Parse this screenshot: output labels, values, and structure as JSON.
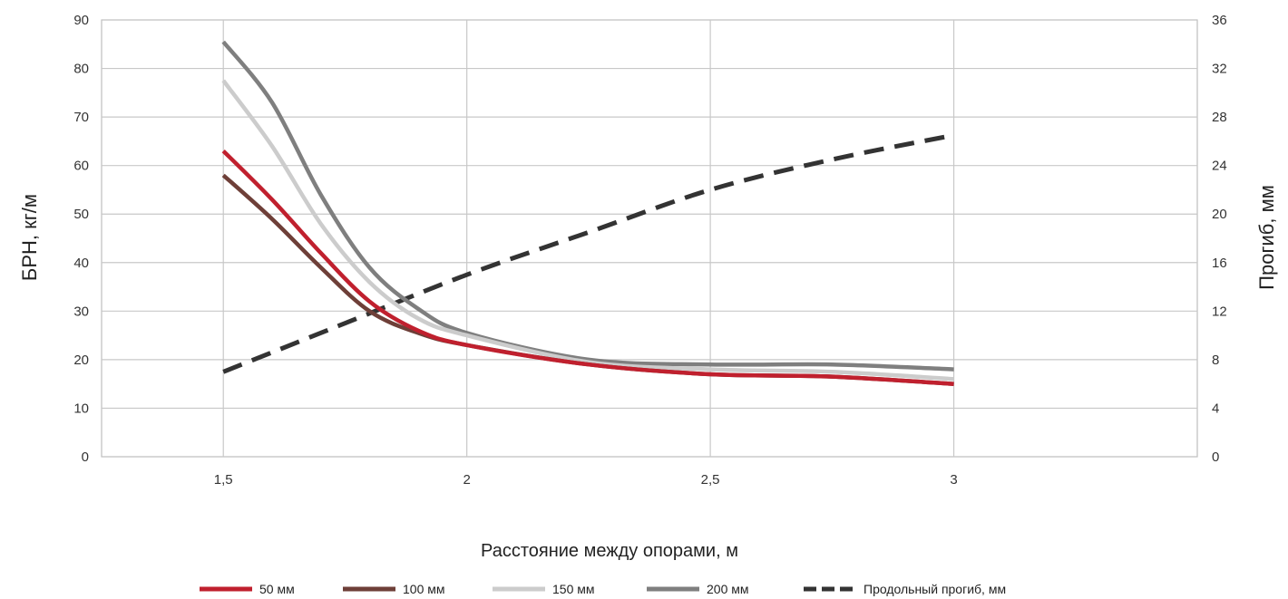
{
  "chart_data": {
    "type": "line",
    "xlabel": "Расстояние между опорами, м",
    "ylabel_left": "БРН, кг/м",
    "ylabel_right": "Прогиб, мм",
    "xlim": [
      1.25,
      3.5
    ],
    "ylim_left": [
      0,
      90
    ],
    "ylim_right": [
      0,
      36
    ],
    "x_ticks": [
      {
        "value": 1.5,
        "label": "1,5"
      },
      {
        "value": 2,
        "label": "2"
      },
      {
        "value": 2.5,
        "label": "2,5"
      },
      {
        "value": 3,
        "label": "3"
      }
    ],
    "y_left_ticks": [
      {
        "value": 0,
        "label": "0"
      },
      {
        "value": 10,
        "label": "10"
      },
      {
        "value": 20,
        "label": "20"
      },
      {
        "value": 30,
        "label": "30"
      },
      {
        "value": 40,
        "label": "40"
      },
      {
        "value": 50,
        "label": "50"
      },
      {
        "value": 60,
        "label": "60"
      },
      {
        "value": 70,
        "label": "70"
      },
      {
        "value": 80,
        "label": "80"
      },
      {
        "value": 90,
        "label": "90"
      }
    ],
    "y_right_ticks": [
      {
        "value": 0,
        "label": "0"
      },
      {
        "value": 4,
        "label": "4"
      },
      {
        "value": 8,
        "label": "8"
      },
      {
        "value": 12,
        "label": "12"
      },
      {
        "value": 16,
        "label": "16"
      },
      {
        "value": 20,
        "label": "20"
      },
      {
        "value": 24,
        "label": "24"
      },
      {
        "value": 28,
        "label": "28"
      },
      {
        "value": 32,
        "label": "32"
      },
      {
        "value": 36,
        "label": "36"
      }
    ],
    "grid": true,
    "legend_position": "bottom",
    "series": [
      {
        "name": "50 мм",
        "axis": "left",
        "color": "#c0202e",
        "dashed": false,
        "x": [
          1.5,
          1.6,
          1.7,
          1.8,
          1.9,
          2.0,
          2.25,
          2.5,
          2.75,
          3.0
        ],
        "y": [
          63,
          53,
          42,
          32,
          26,
          23,
          19,
          17,
          16.5,
          15
        ]
      },
      {
        "name": "100 мм",
        "axis": "left",
        "color": "#6e3f38",
        "dashed": false,
        "x": [
          1.5,
          1.6,
          1.7,
          1.8,
          1.9,
          2.0,
          2.25,
          2.5,
          2.75,
          3.0
        ],
        "y": [
          58,
          49,
          39,
          30,
          25.5,
          23,
          19,
          17,
          16.5,
          15
        ]
      },
      {
        "name": "150 мм",
        "axis": "left",
        "color": "#cccccc",
        "dashed": false,
        "x": [
          1.5,
          1.6,
          1.7,
          1.8,
          1.9,
          2.0,
          2.25,
          2.5,
          2.75,
          3.0
        ],
        "y": [
          77.5,
          64,
          48,
          36,
          28.5,
          25,
          19.5,
          18,
          17.5,
          16
        ]
      },
      {
        "name": "200 мм",
        "axis": "left",
        "color": "#7f7f7f",
        "dashed": false,
        "x": [
          1.5,
          1.6,
          1.7,
          1.8,
          1.9,
          2.0,
          2.25,
          2.5,
          2.75,
          3.0
        ],
        "y": [
          85.5,
          73,
          54,
          39,
          30.5,
          25.5,
          20,
          19,
          19,
          18
        ]
      },
      {
        "name": "Продольный прогиб, мм",
        "axis": "right",
        "color": "#333333",
        "dashed": true,
        "x": [
          1.5,
          1.75,
          2.0,
          2.25,
          2.5,
          2.75,
          3.0
        ],
        "y": [
          7,
          11,
          15,
          18.5,
          22,
          24.5,
          26.5
        ]
      }
    ]
  }
}
